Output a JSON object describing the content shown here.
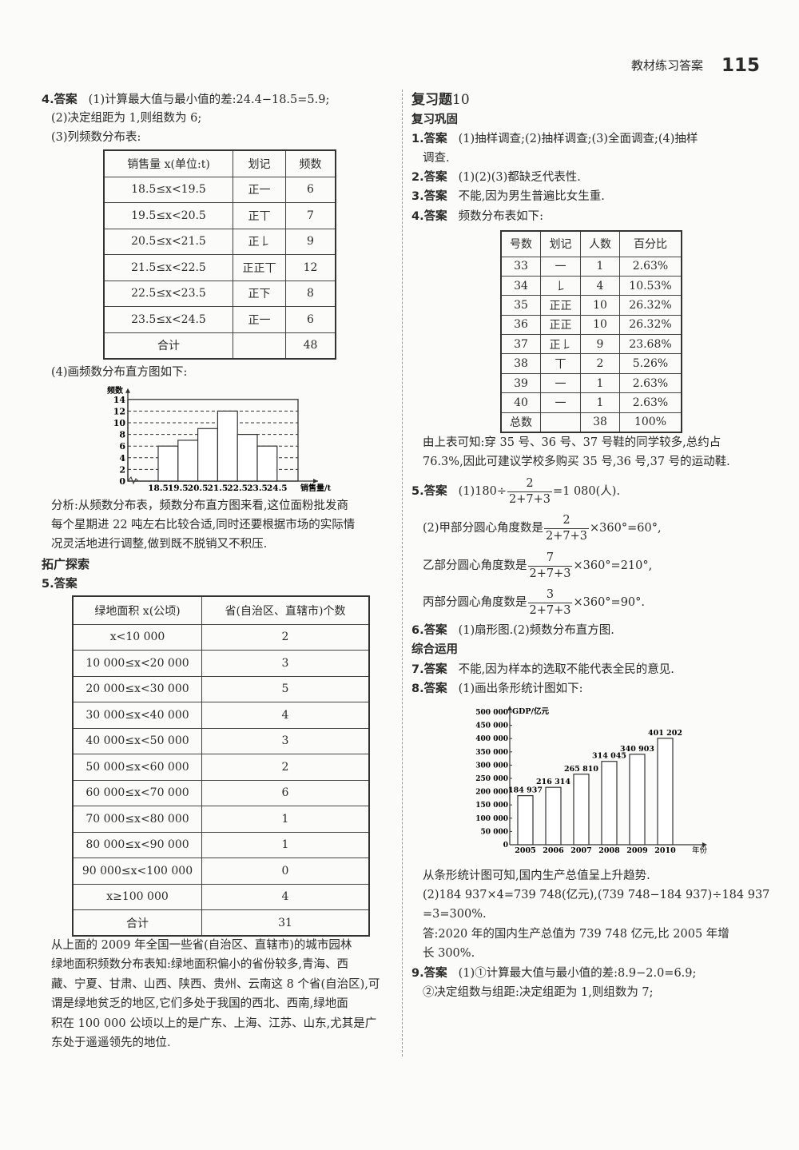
{
  "header": {
    "section": "教材练习答案",
    "page_number": "115"
  },
  "left": {
    "q4": {
      "label": "4.答案",
      "line1": "(1)计算最大值与最小值的差:24.4−18.5=5.9;",
      "line2": "(2)决定组距为 1,则组数为 6;",
      "line3": "(3)列频数分布表:",
      "table": {
        "headers": [
          "销售量 x(单位:t)",
          "划记",
          "频数"
        ],
        "rows": [
          [
            "18.5≤x<19.5",
            "正一",
            "6"
          ],
          [
            "19.5≤x<20.5",
            "正丅",
            "7"
          ],
          [
            "20.5≤x<21.5",
            "正𠄌",
            "9"
          ],
          [
            "21.5≤x<22.5",
            "正正丅",
            "12"
          ],
          [
            "22.5≤x<23.5",
            "正下",
            "8"
          ],
          [
            "23.5≤x<24.5",
            "正一",
            "6"
          ],
          [
            "合计",
            "",
            "48"
          ]
        ]
      },
      "line4": "(4)画频数分布直方图如下:",
      "analysis": [
        "分析:从频数分布表，频数分布直方图来看,这位面粉批发商",
        "每个星期进 22 吨左右比较合适,同时还要根据市场的实际情",
        "况灵活地进行调整,做到既不脱销又不积压."
      ]
    },
    "section_title": "拓广探索",
    "q5": {
      "label": "5.答案",
      "table": {
        "headers": [
          "绿地面积 x(公顷)",
          "省(自治区、直辖市)个数"
        ],
        "rows": [
          [
            "x<10 000",
            "2"
          ],
          [
            "10 000≤x<20 000",
            "3"
          ],
          [
            "20 000≤x<30 000",
            "5"
          ],
          [
            "30 000≤x<40 000",
            "4"
          ],
          [
            "40 000≤x<50 000",
            "3"
          ],
          [
            "50 000≤x<60 000",
            "2"
          ],
          [
            "60 000≤x<70 000",
            "6"
          ],
          [
            "70 000≤x<80 000",
            "1"
          ],
          [
            "80 000≤x<90 000",
            "1"
          ],
          [
            "90 000≤x<100 000",
            "0"
          ],
          [
            "x≥100 000",
            "4"
          ],
          [
            "合计",
            "31"
          ]
        ]
      },
      "paragraph": [
        "从上面的 2009 年全国一些省(自治区、直辖市)的城市园林",
        "绿地面积频数分布表知:绿地面积偏小的省份较多,青海、西",
        "藏、宁夏、甘肃、山西、陕西、贵州、云南这 8 个省(自治区),可",
        "谓是绿地贫乏的地区,它们多处于我国的西北、西南,绿地面",
        "积在 100 000 公顷以上的是广东、上海、江苏、山东,尤其是广",
        "东处于遥遥领先的地位."
      ]
    }
  },
  "right": {
    "title": "复习题",
    "title_num": "10",
    "sub1": "复习巩固",
    "q1": {
      "label": "1.答案",
      "line1": "(1)抽样调查;(2)抽样调查;(3)全面调查;(4)抽样",
      "line2": "调查."
    },
    "q2": {
      "label": "2.答案",
      "text": "(1)(2)(3)都缺乏代表性."
    },
    "q3": {
      "label": "3.答案",
      "text": "不能,因为男生普遍比女生重."
    },
    "q4": {
      "label": "4.答案",
      "text": "频数分布表如下:",
      "table": {
        "headers": [
          "号数",
          "划记",
          "人数",
          "百分比"
        ],
        "rows": [
          [
            "33",
            "一",
            "1",
            "2.63%"
          ],
          [
            "34",
            "𠄌",
            "4",
            "10.53%"
          ],
          [
            "35",
            "正正",
            "10",
            "26.32%"
          ],
          [
            "36",
            "正正",
            "10",
            "26.32%"
          ],
          [
            "37",
            "正𠄌",
            "9",
            "23.68%"
          ],
          [
            "38",
            "丅",
            "2",
            "5.26%"
          ],
          [
            "39",
            "一",
            "1",
            "2.63%"
          ],
          [
            "40",
            "一",
            "1",
            "2.63%"
          ],
          [
            "总数",
            "",
            "38",
            "100%"
          ]
        ]
      },
      "after": [
        "由上表可知:穿 35 号、36 号、37 号鞋的同学较多,总约占",
        "76.3%,因此可建议学校多购买 35 号,36 号,37 号的运动鞋."
      ]
    },
    "q5": {
      "label": "5.答案",
      "p1": {
        "pre": "(1)180÷",
        "num": "2",
        "den": "2+7+3",
        "post": "=1 080(人)."
      },
      "p2": {
        "pre": "(2)甲部分圆心角度数是",
        "num": "2",
        "den": "2+7+3",
        "post": "×360°=60°,"
      },
      "p3": {
        "pre": "乙部分圆心角度数是",
        "num": "7",
        "den": "2+7+3",
        "post": "×360°=210°,"
      },
      "p4": {
        "pre": "丙部分圆心角度数是",
        "num": "3",
        "den": "2+7+3",
        "post": "×360°=90°."
      }
    },
    "q6": {
      "label": "6.答案",
      "text": "(1)扇形图.(2)频数分布直方图."
    },
    "sub2": "综合运用",
    "q7": {
      "label": "7.答案",
      "text": "不能,因为样本的选取不能代表全民的意见."
    },
    "q8": {
      "label": "8.答案",
      "text": "(1)画出条形统计图如下:",
      "after": [
        "从条形统计图可知,国内生产总值呈上升趋势.",
        "(2)184 937×4=739 748(亿元),(739 748−184 937)÷184 937",
        "=3=300%.",
        "答:2020 年的国内生产总值为 739 748 亿元,比 2005 年增",
        "长 300%."
      ]
    },
    "q9": {
      "label": "9.答案",
      "line1": "(1)①计算最大值与最小值的差:8.9−2.0=6.9;",
      "line2": "②决定组数与组距:决定组距为 1,则组数为 7;"
    }
  },
  "chart_data": [
    {
      "type": "bar",
      "title": "",
      "ylabel": "频数",
      "xlabel": "销售量/t",
      "bin_edges": [
        "18.5",
        "19.5",
        "20.5",
        "21.5",
        "22.5",
        "23.5",
        "24.5"
      ],
      "values": [
        6,
        7,
        9,
        12,
        8,
        6
      ],
      "yticks": [
        "0",
        "2",
        "4",
        "6",
        "8",
        "10",
        "12",
        "14"
      ],
      "ylim": [
        0,
        14
      ],
      "grid": "dashed horizontal"
    },
    {
      "type": "bar",
      "title": "",
      "ylabel": "GDP/亿元",
      "xlabel": "年份",
      "categories": [
        "2005",
        "2006",
        "2007",
        "2008",
        "2009",
        "2010"
      ],
      "values": [
        184937,
        216314,
        265810,
        314045,
        340903,
        401202
      ],
      "value_labels": [
        "184 937",
        "216 314",
        "265 810",
        "314 045",
        "340 903",
        "401 202"
      ],
      "yticks": [
        "0",
        "50 000",
        "100 000",
        "150 000",
        "200 000",
        "250 000",
        "300 000",
        "350 000",
        "400 000",
        "450 000",
        "500 000"
      ],
      "ylim": [
        0,
        500000
      ],
      "grid": "none"
    }
  ]
}
